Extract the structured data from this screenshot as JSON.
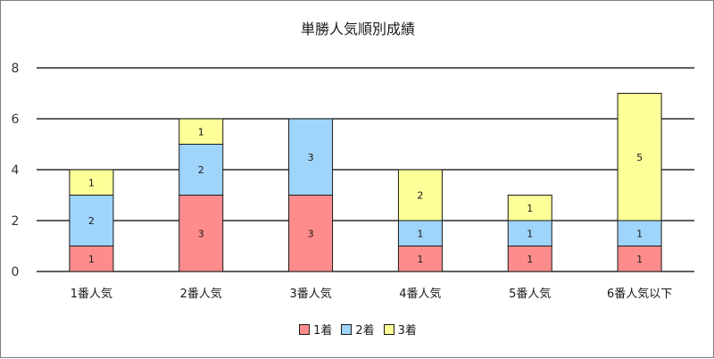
{
  "chart_data": {
    "type": "bar",
    "stacked": true,
    "title": "単勝人気順別成績",
    "categories": [
      "1番人気",
      "2番人気",
      "3番人気",
      "4番人気",
      "5番人気",
      "6番人気以下"
    ],
    "series": [
      {
        "name": "1着",
        "color": "#ff8c8c",
        "values": [
          1,
          3,
          3,
          1,
          1,
          1
        ]
      },
      {
        "name": "2着",
        "color": "#9fd4fb",
        "values": [
          2,
          2,
          3,
          1,
          1,
          1
        ]
      },
      {
        "name": "3着",
        "color": "#ffff99",
        "values": [
          1,
          1,
          0,
          2,
          1,
          5
        ]
      }
    ],
    "ylim": [
      0,
      8
    ],
    "yticks": [
      0,
      2,
      4,
      6,
      8
    ],
    "grid": true,
    "legend": "bottom"
  }
}
